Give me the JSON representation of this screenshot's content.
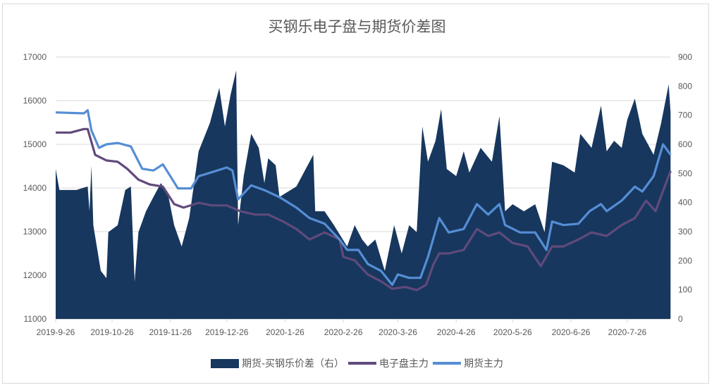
{
  "chart_data": {
    "type": "area+line",
    "title": "买钢乐电子盘与期货价差图",
    "x_tick_labels": [
      "2019-9-26",
      "2019-10-26",
      "2019-11-26",
      "2019-12-26",
      "2020-1-26",
      "2020-2-26",
      "2020-3-26",
      "2020-4-26",
      "2020-5-26",
      "2020-6-26",
      "2020-7-26"
    ],
    "x_ticks": [
      "2019-09-26",
      "2019-10-26",
      "2019-11-26",
      "2019-12-26",
      "2020-01-26",
      "2020-02-26",
      "2020-03-26",
      "2020-04-26",
      "2020-05-26",
      "2020-06-26",
      "2020-07-26"
    ],
    "xlim": [
      "2019-09-26",
      "2020-08-18"
    ],
    "y_left": {
      "lim": [
        11000,
        17000
      ],
      "ticks": [
        11000,
        12000,
        13000,
        14000,
        15000,
        16000,
        17000
      ]
    },
    "y_right": {
      "lim": [
        0,
        900
      ],
      "ticks": [
        0,
        100,
        200,
        300,
        400,
        500,
        600,
        700,
        800,
        900
      ]
    },
    "grid": true,
    "legend_position": "bottom",
    "colors": {
      "spread": "#17375e",
      "ezp": "#604a7b",
      "futures": "#558ed5"
    },
    "series": [
      {
        "name": "期货-买钢乐价差（右）",
        "type": "area",
        "axis": "right",
        "points": [
          [
            "2019-09-26",
            515
          ],
          [
            "2019-09-28",
            443
          ],
          [
            "2019-10-07",
            443
          ],
          [
            "2019-10-13",
            455
          ],
          [
            "2019-10-14",
            370
          ],
          [
            "2019-10-15",
            527
          ],
          [
            "2019-10-16",
            322
          ],
          [
            "2019-10-20",
            165
          ],
          [
            "2019-10-23",
            140
          ],
          [
            "2019-10-24",
            298
          ],
          [
            "2019-10-29",
            322
          ],
          [
            "2019-11-02",
            443
          ],
          [
            "2019-11-05",
            455
          ],
          [
            "2019-11-07",
            128
          ],
          [
            "2019-11-09",
            298
          ],
          [
            "2019-11-13",
            370
          ],
          [
            "2019-11-17",
            419
          ],
          [
            "2019-11-21",
            467
          ],
          [
            "2019-11-25",
            419
          ],
          [
            "2019-11-28",
            322
          ],
          [
            "2019-12-02",
            249
          ],
          [
            "2019-12-06",
            346
          ],
          [
            "2019-12-11",
            576
          ],
          [
            "2019-12-17",
            673
          ],
          [
            "2019-12-22",
            794
          ],
          [
            "2019-12-25",
            661
          ],
          [
            "2019-12-28",
            770
          ],
          [
            "2019-12-31",
            854
          ],
          [
            "2020-01-01",
            322
          ],
          [
            "2020-01-04",
            491
          ],
          [
            "2020-01-08",
            636
          ],
          [
            "2020-01-12",
            588
          ],
          [
            "2020-01-15",
            467
          ],
          [
            "2020-01-17",
            552
          ],
          [
            "2020-01-21",
            528
          ],
          [
            "2020-01-23",
            419
          ],
          [
            "2020-02-01",
            455
          ],
          [
            "2020-02-10",
            564
          ],
          [
            "2020-02-11",
            370
          ],
          [
            "2020-02-16",
            370
          ],
          [
            "2020-02-21",
            322
          ],
          [
            "2020-02-28",
            249
          ],
          [
            "2020-03-03",
            322
          ],
          [
            "2020-03-07",
            273
          ],
          [
            "2020-03-10",
            249
          ],
          [
            "2020-03-14",
            273
          ],
          [
            "2020-03-19",
            165
          ],
          [
            "2020-03-24",
            322
          ],
          [
            "2020-03-28",
            225
          ],
          [
            "2020-04-01",
            322
          ],
          [
            "2020-04-05",
            298
          ],
          [
            "2020-04-08",
            661
          ],
          [
            "2020-04-11",
            540
          ],
          [
            "2020-04-15",
            612
          ],
          [
            "2020-04-18",
            721
          ],
          [
            "2020-04-21",
            515
          ],
          [
            "2020-04-26",
            491
          ],
          [
            "2020-04-30",
            576
          ],
          [
            "2020-05-03",
            503
          ],
          [
            "2020-05-09",
            588
          ],
          [
            "2020-05-15",
            540
          ],
          [
            "2020-05-19",
            697
          ],
          [
            "2020-05-22",
            370
          ],
          [
            "2020-05-26",
            394
          ],
          [
            "2020-06-01",
            370
          ],
          [
            "2020-06-07",
            394
          ],
          [
            "2020-06-12",
            298
          ],
          [
            "2020-06-16",
            540
          ],
          [
            "2020-06-22",
            528
          ],
          [
            "2020-06-28",
            503
          ],
          [
            "2020-07-01",
            636
          ],
          [
            "2020-07-07",
            588
          ],
          [
            "2020-07-12",
            733
          ],
          [
            "2020-07-15",
            576
          ],
          [
            "2020-07-19",
            612
          ],
          [
            "2020-07-23",
            588
          ],
          [
            "2020-07-26",
            685
          ],
          [
            "2020-07-30",
            757
          ],
          [
            "2020-08-03",
            636
          ],
          [
            "2020-08-09",
            564
          ],
          [
            "2020-08-13",
            673
          ],
          [
            "2020-08-17",
            806
          ],
          [
            "2020-08-18",
            709
          ]
        ]
      },
      {
        "name": "电子盘主力",
        "type": "line",
        "axis": "left",
        "points": [
          [
            "2019-09-26",
            15270
          ],
          [
            "2019-10-04",
            15270
          ],
          [
            "2019-10-11",
            15350
          ],
          [
            "2019-10-13",
            15350
          ],
          [
            "2019-10-17",
            14760
          ],
          [
            "2019-10-23",
            14630
          ],
          [
            "2019-10-29",
            14600
          ],
          [
            "2019-11-03",
            14440
          ],
          [
            "2019-11-09",
            14190
          ],
          [
            "2019-11-15",
            14080
          ],
          [
            "2019-11-22",
            14030
          ],
          [
            "2019-11-28",
            13630
          ],
          [
            "2019-12-03",
            13550
          ],
          [
            "2019-12-11",
            13660
          ],
          [
            "2019-12-18",
            13600
          ],
          [
            "2019-12-26",
            13600
          ],
          [
            "2020-01-02",
            13470
          ],
          [
            "2020-01-10",
            13390
          ],
          [
            "2020-01-17",
            13390
          ],
          [
            "2020-01-25",
            13230
          ],
          [
            "2020-02-01",
            13060
          ],
          [
            "2020-02-08",
            12820
          ],
          [
            "2020-02-16",
            12980
          ],
          [
            "2020-02-24",
            12820
          ],
          [
            "2020-02-26",
            12420
          ],
          [
            "2020-03-03",
            12340
          ],
          [
            "2020-03-10",
            12020
          ],
          [
            "2020-03-17",
            11860
          ],
          [
            "2020-03-23",
            11690
          ],
          [
            "2020-03-30",
            11730
          ],
          [
            "2020-04-05",
            11660
          ],
          [
            "2020-04-10",
            11780
          ],
          [
            "2020-04-14",
            12260
          ],
          [
            "2020-04-17",
            12500
          ],
          [
            "2020-04-22",
            12500
          ],
          [
            "2020-04-30",
            12580
          ],
          [
            "2020-05-07",
            13060
          ],
          [
            "2020-05-13",
            12900
          ],
          [
            "2020-05-19",
            12980
          ],
          [
            "2020-05-26",
            12740
          ],
          [
            "2020-06-03",
            12660
          ],
          [
            "2020-06-10",
            12210
          ],
          [
            "2020-06-16",
            12660
          ],
          [
            "2020-06-22",
            12660
          ],
          [
            "2020-06-30",
            12820
          ],
          [
            "2020-07-07",
            12980
          ],
          [
            "2020-07-15",
            12900
          ],
          [
            "2020-07-23",
            13150
          ],
          [
            "2020-07-30",
            13310
          ],
          [
            "2020-08-05",
            13710
          ],
          [
            "2020-08-10",
            13470
          ],
          [
            "2020-08-18",
            14390
          ]
        ]
      },
      {
        "name": "期货主力",
        "type": "line",
        "axis": "left",
        "points": [
          [
            "2019-09-26",
            15730
          ],
          [
            "2019-10-11",
            15710
          ],
          [
            "2019-10-13",
            15780
          ],
          [
            "2019-10-15",
            15320
          ],
          [
            "2019-10-19",
            14920
          ],
          [
            "2019-10-23",
            15000
          ],
          [
            "2019-10-29",
            15030
          ],
          [
            "2019-11-05",
            14950
          ],
          [
            "2019-11-11",
            14440
          ],
          [
            "2019-11-17",
            14400
          ],
          [
            "2019-11-22",
            14540
          ],
          [
            "2019-11-26",
            14270
          ],
          [
            "2019-11-30",
            13990
          ],
          [
            "2019-12-07",
            13990
          ],
          [
            "2019-12-11",
            14270
          ],
          [
            "2019-12-18",
            14360
          ],
          [
            "2019-12-26",
            14470
          ],
          [
            "2019-12-29",
            14400
          ],
          [
            "2020-01-01",
            13740
          ],
          [
            "2020-01-08",
            14060
          ],
          [
            "2020-01-15",
            13950
          ],
          [
            "2020-01-23",
            13790
          ],
          [
            "2020-02-01",
            13550
          ],
          [
            "2020-02-08",
            13310
          ],
          [
            "2020-02-16",
            13180
          ],
          [
            "2020-02-24",
            12820
          ],
          [
            "2020-02-28",
            12580
          ],
          [
            "2020-03-05",
            12580
          ],
          [
            "2020-03-10",
            12260
          ],
          [
            "2020-03-17",
            12100
          ],
          [
            "2020-03-23",
            11780
          ],
          [
            "2020-03-26",
            12020
          ],
          [
            "2020-04-01",
            11940
          ],
          [
            "2020-04-07",
            11940
          ],
          [
            "2020-04-11",
            12420
          ],
          [
            "2020-04-17",
            13310
          ],
          [
            "2020-04-22",
            12980
          ],
          [
            "2020-04-30",
            13060
          ],
          [
            "2020-05-07",
            13630
          ],
          [
            "2020-05-13",
            13390
          ],
          [
            "2020-05-19",
            13630
          ],
          [
            "2020-05-22",
            13150
          ],
          [
            "2020-05-30",
            12980
          ],
          [
            "2020-06-07",
            12980
          ],
          [
            "2020-06-13",
            12580
          ],
          [
            "2020-06-16",
            13230
          ],
          [
            "2020-06-22",
            13150
          ],
          [
            "2020-06-30",
            13180
          ],
          [
            "2020-07-06",
            13470
          ],
          [
            "2020-07-12",
            13630
          ],
          [
            "2020-07-15",
            13470
          ],
          [
            "2020-07-23",
            13710
          ],
          [
            "2020-07-30",
            14030
          ],
          [
            "2020-08-03",
            13920
          ],
          [
            "2020-08-09",
            14270
          ],
          [
            "2020-08-14",
            15000
          ],
          [
            "2020-08-18",
            14760
          ]
        ]
      }
    ]
  }
}
